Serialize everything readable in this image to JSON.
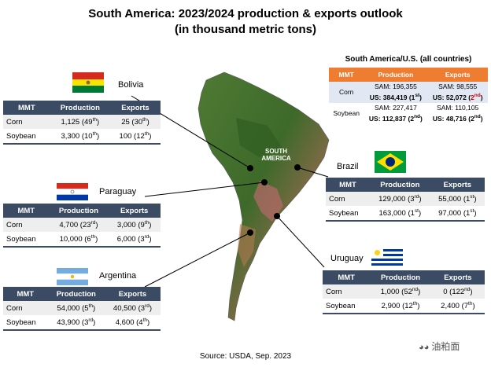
{
  "title_line1": "South America: 2023/2024 production & exports outlook",
  "title_line2": "(in thousand metric tons)",
  "summary": {
    "heading": "South America/U.S. (all countries)",
    "headers": [
      "MMT",
      "Production",
      "Exports"
    ],
    "corn": {
      "label": "Corn",
      "sam_prod": "SAM: 196,355",
      "us_prod_base": "US: 384,419 (1",
      "us_prod_sup": "st",
      "sam_exp": "SAM: 98,555",
      "us_exp_base": "US: 52,072 (",
      "us_exp_sup_pre": "2",
      "us_exp_sup": "nd"
    },
    "soybean": {
      "label": "Soybean",
      "sam_prod": "SAM: 227,417",
      "us_prod_base": "US: 112,837 (2",
      "us_prod_sup": "nd",
      "sam_exp": "SAM: 110,105",
      "us_exp_base": "US: 48,716 (2",
      "us_exp_sup": "nd"
    }
  },
  "map_label": "SOUTH AMERICA",
  "countries": {
    "bolivia": {
      "name": "Bolivia",
      "headers": [
        "MMT",
        "Production",
        "Exports"
      ],
      "rows": [
        {
          "label": "Corn",
          "prod": "1,125 (49",
          "prod_sup": "th",
          "exp": "25 (30",
          "exp_sup": "th"
        },
        {
          "label": "Soybean",
          "prod": "3,300 (10",
          "prod_sup": "th",
          "exp": "100 (12",
          "exp_sup": "th"
        }
      ]
    },
    "paraguay": {
      "name": "Paraguay",
      "headers": [
        "MMT",
        "Production",
        "Exports"
      ],
      "rows": [
        {
          "label": "Corn",
          "prod": "4,700 (23",
          "prod_sup": "rd",
          "exp": "3,000 (9",
          "exp_sup": "th"
        },
        {
          "label": "Soybean",
          "prod": "10,000 (6",
          "prod_sup": "th",
          "exp": "6,000 (3",
          "exp_sup": "rd"
        }
      ]
    },
    "argentina": {
      "name": "Argentina",
      "headers": [
        "MMT",
        "Production",
        "Exports"
      ],
      "rows": [
        {
          "label": "Corn",
          "prod": "54,000 (5",
          "prod_sup": "th",
          "exp": "40,500 (3",
          "exp_sup": "rd"
        },
        {
          "label": "Soybean",
          "prod": "43,900 (3",
          "prod_sup": "rd",
          "exp": "4,600 (4",
          "exp_sup": "th"
        }
      ]
    },
    "brazil": {
      "name": "Brazil",
      "headers": [
        "MMT",
        "Production",
        "Exports"
      ],
      "rows": [
        {
          "label": "Corn",
          "prod": "129,000 (3",
          "prod_sup": "rd",
          "exp": "55,000 (1",
          "exp_sup": "st"
        },
        {
          "label": "Soybean",
          "prod": "163,000 (1",
          "prod_sup": "st",
          "exp": "97,000 (1",
          "exp_sup": "st"
        }
      ]
    },
    "uruguay": {
      "name": "Uruguay",
      "headers": [
        "MMT",
        "Production",
        "Exports"
      ],
      "rows": [
        {
          "label": "Corn",
          "prod": "1,000 (52",
          "prod_sup": "nd",
          "exp": "0 (122",
          "exp_sup": "nd"
        },
        {
          "label": "Soybean",
          "prod": "2,900 (12",
          "prod_sup": "th",
          "exp": "2,400 (7",
          "exp_sup": "th"
        }
      ]
    }
  },
  "source": "Source: USDA, Sep. 2023",
  "watermark": "油粕面"
}
